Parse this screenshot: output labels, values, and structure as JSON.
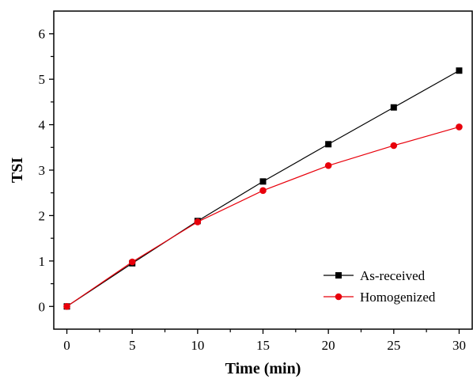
{
  "chart_data": {
    "type": "line",
    "title": "",
    "xlabel": "Time (min)",
    "ylabel": "TSI",
    "xlim": [
      -1,
      31
    ],
    "ylim": [
      -0.5,
      6.5
    ],
    "xticks": [
      0,
      5,
      10,
      15,
      20,
      25,
      30
    ],
    "yticks": [
      0,
      1,
      2,
      3,
      4,
      5,
      6
    ],
    "grid": false,
    "legend_position": "bottom-right",
    "x": [
      0,
      5,
      10,
      15,
      20,
      25,
      30
    ],
    "series": [
      {
        "name": "As-received",
        "color": "#000000",
        "marker": "square",
        "values": [
          0.0,
          0.95,
          1.88,
          2.75,
          3.57,
          4.38,
          5.19
        ]
      },
      {
        "name": "Homogenized",
        "color": "#e8000b",
        "marker": "circle",
        "values": [
          0.0,
          0.98,
          1.86,
          2.55,
          3.1,
          3.54,
          3.95
        ]
      }
    ]
  }
}
